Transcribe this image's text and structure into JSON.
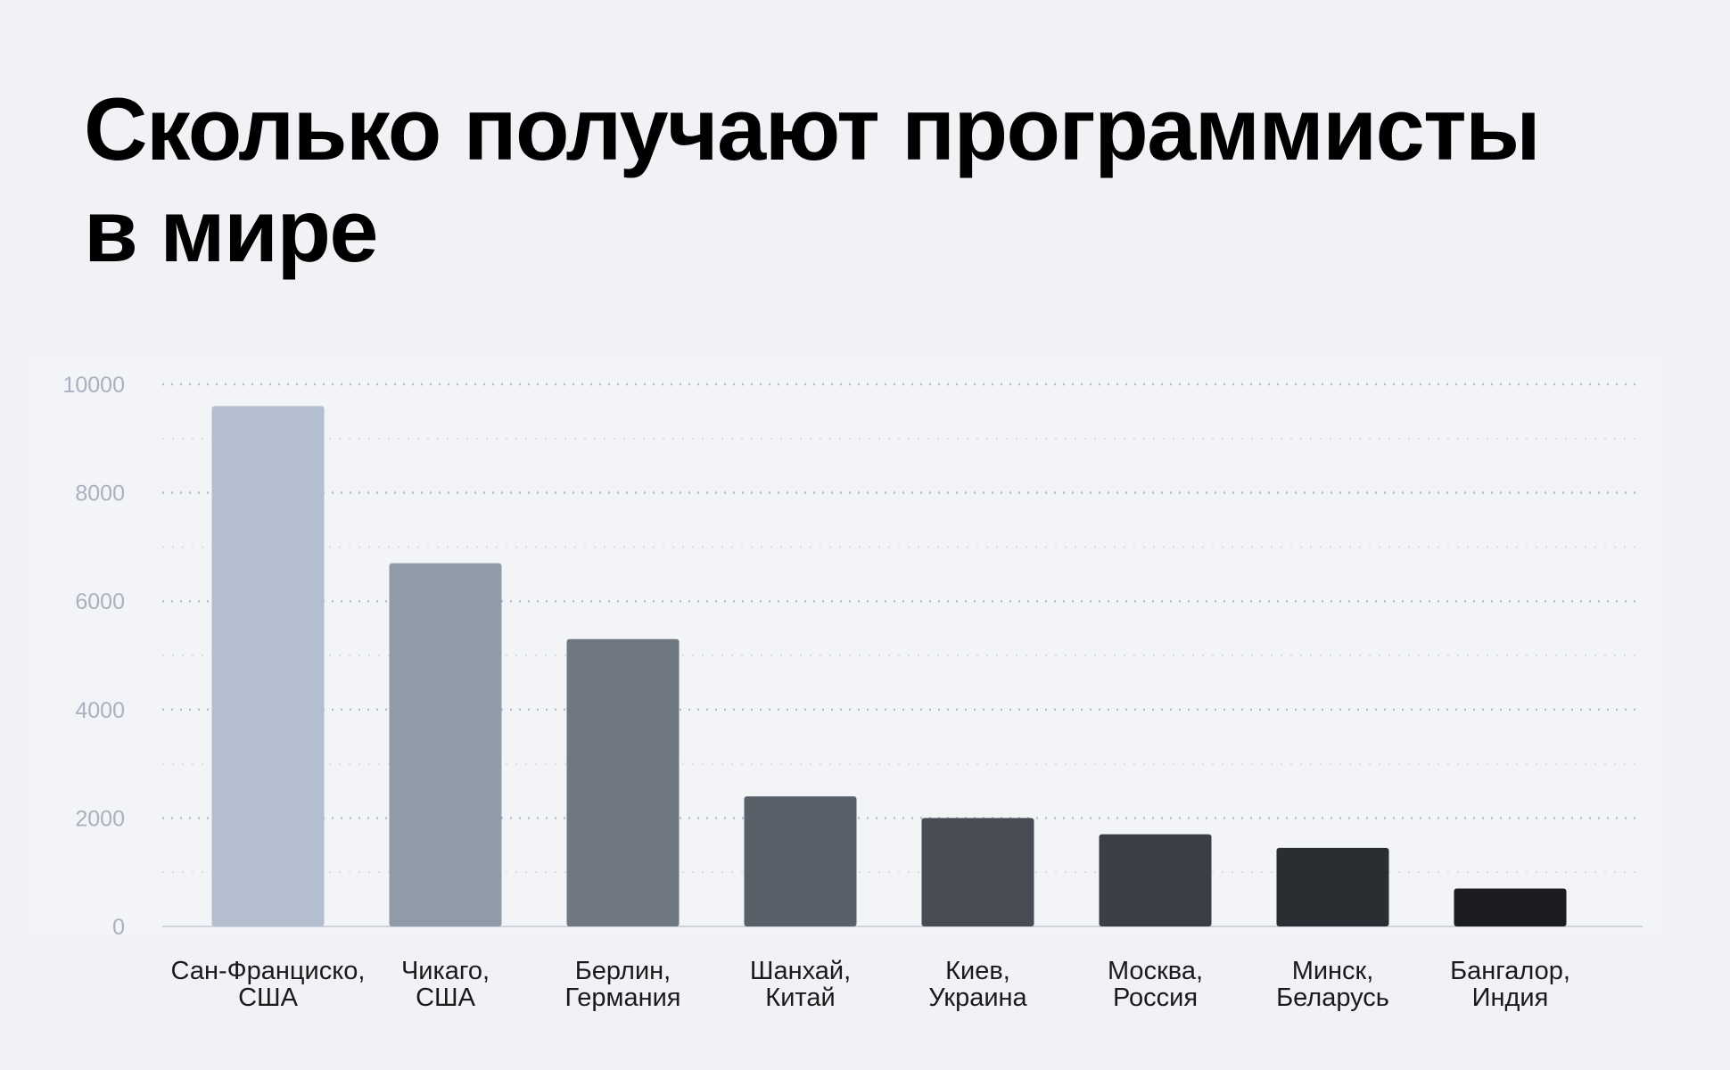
{
  "page": {
    "title_lines": [
      "Сколько получают программисты",
      "в мире"
    ]
  },
  "chart_data": {
    "type": "bar",
    "title": "Сколько получают программисты в мире",
    "xlabel": "",
    "ylabel": "",
    "ylim": [
      0,
      10000
    ],
    "yticks": [
      0,
      2000,
      4000,
      6000,
      8000,
      10000
    ],
    "ytick_labels": [
      "0",
      "2000",
      "4000",
      "6000",
      "8000",
      "10000"
    ],
    "grid": true,
    "categories": [
      [
        "Сан-Франциско,",
        "США"
      ],
      [
        "Чикаго,",
        "США"
      ],
      [
        "Берлин,",
        "Германия"
      ],
      [
        "Шанхай,",
        "Китай"
      ],
      [
        "Киев,",
        "Украина"
      ],
      [
        "Москва,",
        "Россия"
      ],
      [
        "Минск,",
        "Беларусь"
      ],
      [
        "Бангалор,",
        "Индия"
      ]
    ],
    "values": [
      9600,
      6700,
      5300,
      2400,
      2000,
      1700,
      1450,
      700
    ],
    "colors": [
      "#b3bfcf",
      "#8f9ba6",
      "#6f7781",
      "#5a6069",
      "#484d55",
      "#3a3e45",
      "#2a2d32",
      "#1c1d21"
    ],
    "background": "#f1f2f6"
  }
}
